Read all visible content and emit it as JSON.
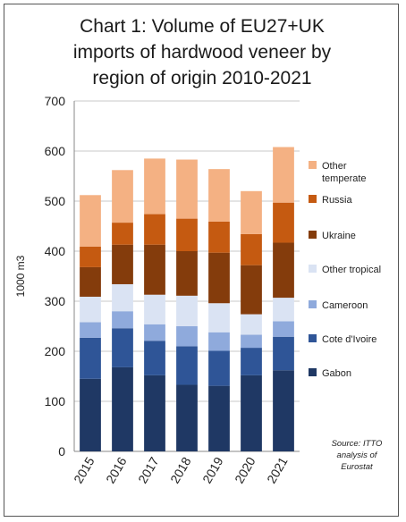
{
  "chart_data": {
    "type": "bar",
    "stacked": true,
    "title": "Chart 1: Volume of EU27+UK\nimports of hardwood veneer by\nregion of origin 2010-2021",
    "ylabel": "1000 m3",
    "xlabel": "",
    "ylim": [
      0,
      700
    ],
    "yticks": [
      0,
      100,
      200,
      300,
      400,
      500,
      600,
      700
    ],
    "categories": [
      "2015",
      "2016",
      "2017",
      "2018",
      "2019",
      "2020",
      "2021"
    ],
    "series": [
      {
        "name": "Gabon",
        "color": "#1F3864",
        "values": [
          145,
          168,
          152,
          133,
          131,
          152,
          162
        ]
      },
      {
        "name": "Cote d'Ivoire",
        "color": "#2F5597",
        "values": [
          82,
          78,
          69,
          77,
          70,
          55,
          67
        ]
      },
      {
        "name": "Cameroon",
        "color": "#8FAADC",
        "values": [
          31,
          34,
          33,
          40,
          37,
          26,
          31
        ]
      },
      {
        "name": "Other tropical",
        "color": "#DAE3F3",
        "values": [
          51,
          54,
          59,
          61,
          58,
          41,
          47
        ]
      },
      {
        "name": "Ukraine",
        "color": "#843C0C",
        "values": [
          59,
          79,
          100,
          89,
          101,
          98,
          110
        ]
      },
      {
        "name": "Russia",
        "color": "#C55A11",
        "values": [
          41,
          44,
          61,
          65,
          62,
          62,
          80
        ]
      },
      {
        "name": "Other\ntemperate",
        "color": "#F4B183",
        "values": [
          103,
          105,
          111,
          118,
          105,
          86,
          111
        ]
      }
    ],
    "grid": true,
    "legend_position": "right",
    "source_note": "Source: ITTO\nanalysis of\nEurostat"
  }
}
